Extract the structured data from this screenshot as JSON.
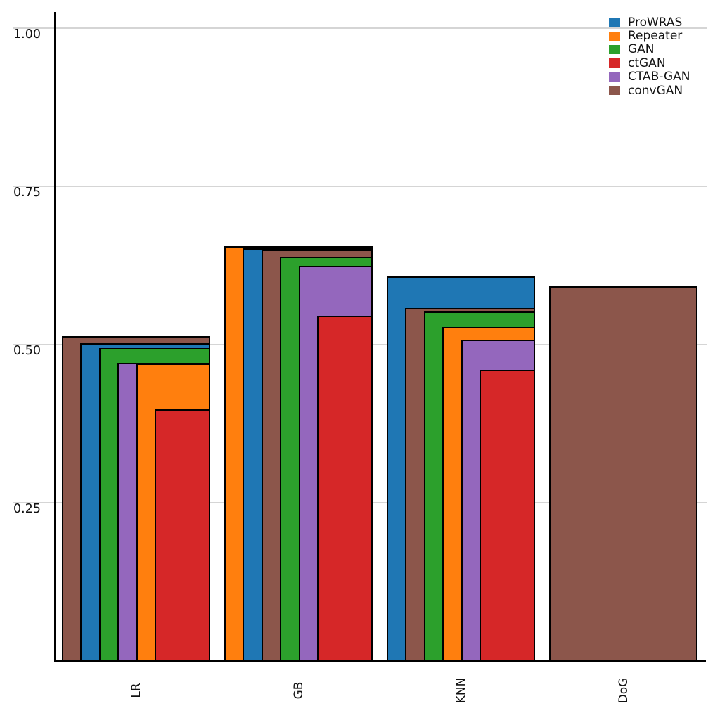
{
  "figure": {
    "background_color": "#ffffff",
    "grid_color": "#d5d5d5",
    "axis_color": "#000000",
    "bar_edge_color": "#000000",
    "text_color": "#111111"
  },
  "chart_data": {
    "type": "bar",
    "variant": "overlapping-nested-bars-sorted-descending-right-aligned",
    "title": "",
    "xlabel": "",
    "ylabel": "",
    "categories": [
      "LR",
      "GB",
      "KNN",
      "DoG"
    ],
    "series": [
      {
        "name": "ProWRAS",
        "color": "#1f77b4",
        "values": [
          0.502,
          0.652,
          0.608,
          null
        ]
      },
      {
        "name": "Repeater",
        "color": "#ff7f0e",
        "values": [
          0.47,
          0.656,
          0.528,
          null
        ]
      },
      {
        "name": "GAN",
        "color": "#2ca02c",
        "values": [
          0.494,
          0.639,
          0.552,
          null
        ]
      },
      {
        "name": "ctGAN",
        "color": "#d62728",
        "values": [
          0.398,
          0.546,
          0.46,
          null
        ]
      },
      {
        "name": "CTAB-GAN",
        "color": "#9467bd",
        "values": [
          0.471,
          0.625,
          0.508,
          null
        ]
      },
      {
        "name": "convGAN",
        "color": "#8c564b",
        "values": [
          0.513,
          0.65,
          0.558,
          0.592
        ]
      }
    ],
    "yticks": [
      1.0,
      0.75,
      0.5,
      0.25
    ],
    "ytick_labels": [
      "1.00",
      "0.75",
      "0.50",
      "0.25"
    ],
    "ylim": [
      0,
      1.022
    ],
    "grid": true,
    "legend_position": "upper right"
  }
}
